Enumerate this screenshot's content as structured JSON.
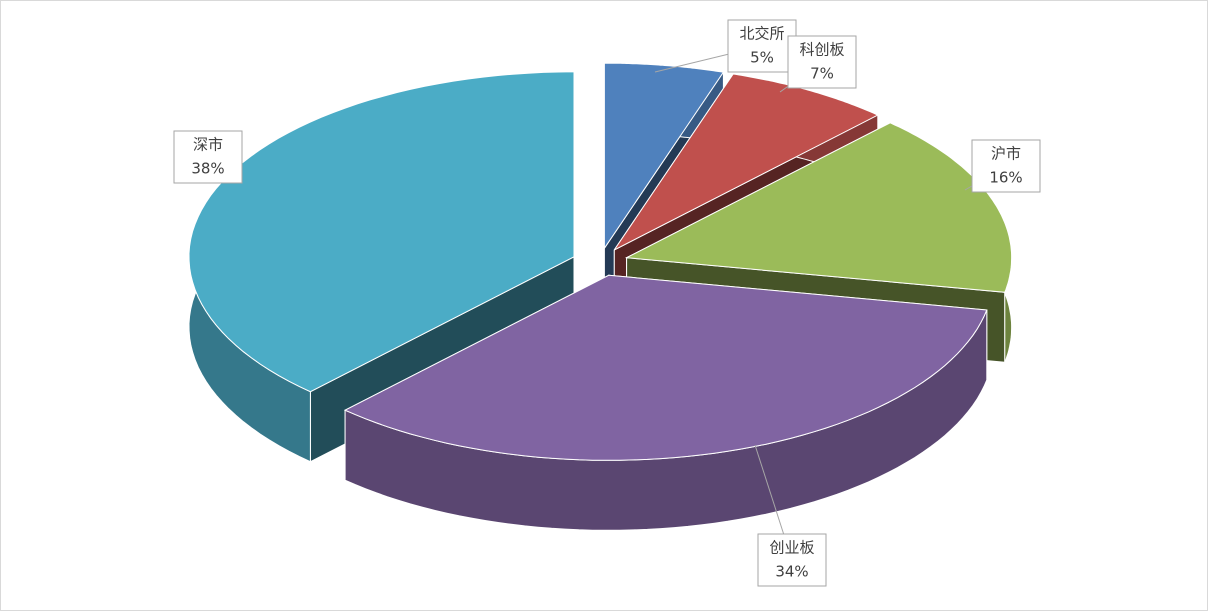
{
  "chart_data": {
    "type": "pie",
    "categories": [
      "北交所",
      "科创板",
      "沪市",
      "创业板",
      "深市"
    ],
    "values": [
      5,
      7,
      16,
      34,
      38
    ],
    "value_labels": [
      "5%",
      "7%",
      "16%",
      "34%",
      "38%"
    ],
    "colors": [
      "#4f81bd",
      "#c0504d",
      "#9bbb59",
      "#8064a2",
      "#4bacc6"
    ]
  }
}
